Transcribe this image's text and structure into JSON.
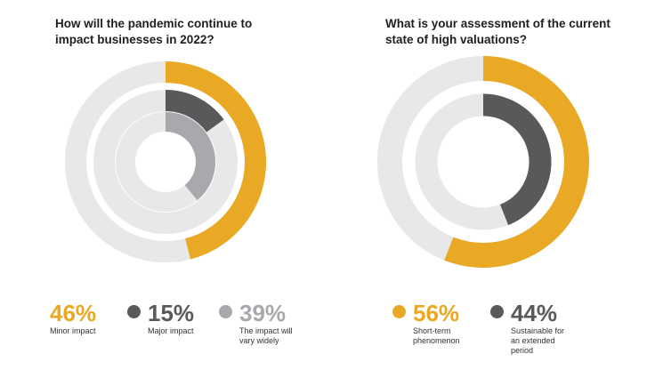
{
  "colors": {
    "track": "#e8e8e8",
    "orange": "#eaa924",
    "dark": "#58595b",
    "grey": "#a7a9ac"
  },
  "chart_data": [
    {
      "type": "pie",
      "title": "How will the pandemic continue to\nimpact businesses in 2022?",
      "series": [
        {
          "value": 46,
          "value_label": "46%",
          "label": "Minor impact",
          "color": "#eaa924"
        },
        {
          "value": 15,
          "value_label": "15%",
          "label": "Major impact",
          "color": "#58595b"
        },
        {
          "value": 39,
          "value_label": "39%",
          "label": "The impact will\nvary widely",
          "color": "#a7a9ac"
        }
      ]
    },
    {
      "type": "pie",
      "title": "What is your assessment of the current\nstate of high valuations?",
      "series": [
        {
          "value": 56,
          "value_label": "56%",
          "label": "Short-term\nphenomenon",
          "color": "#eaa924"
        },
        {
          "value": 44,
          "value_label": "44%",
          "label": "Sustainable for\nan extended\nperiod",
          "color": "#58595b"
        }
      ]
    }
  ]
}
